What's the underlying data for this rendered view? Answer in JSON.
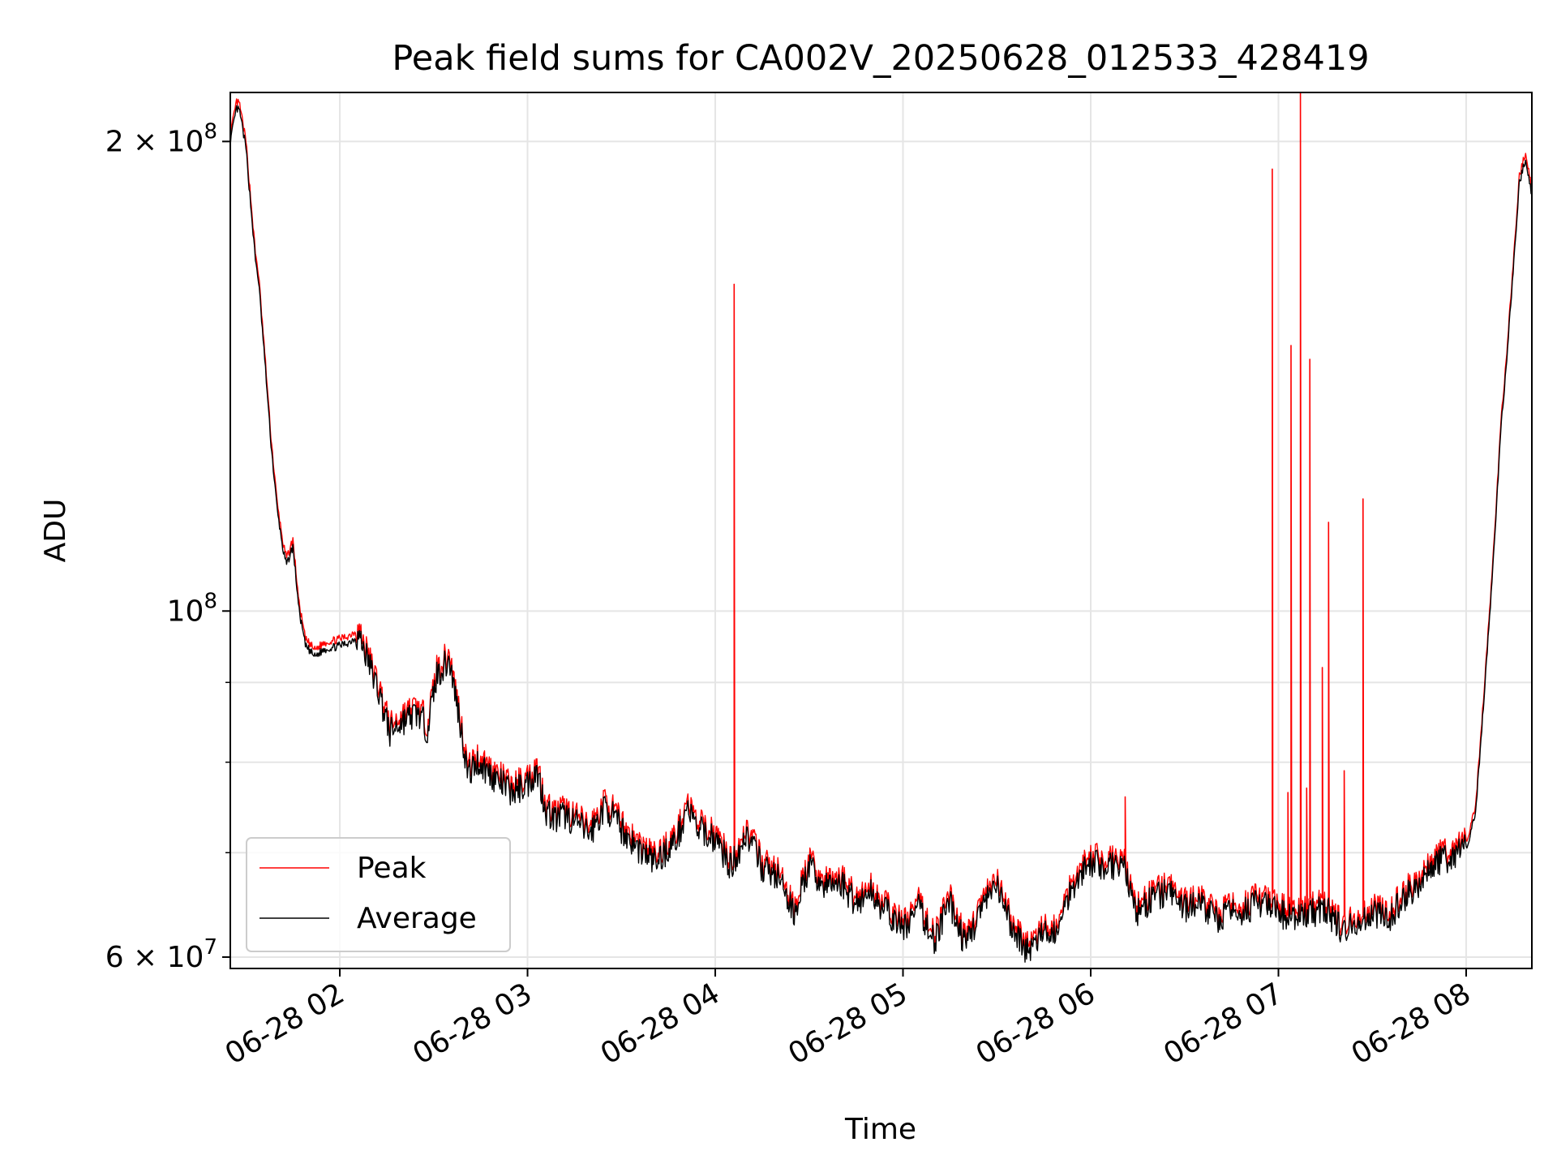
{
  "chart_data": {
    "type": "line",
    "title": "Peak field sums for CA002V_20250628_012533_428419",
    "xlabel": "Time",
    "ylabel": "ADU",
    "y_scale": "log",
    "ylim": [
      59000000,
      215000000
    ],
    "xlim": [
      "2025-06-28 01:25",
      "2025-06-28 08:21"
    ],
    "grid": true,
    "legend_position": "lower-left",
    "x_ticks": [
      {
        "t": "2025-06-28 02:00",
        "label": "06-28 02"
      },
      {
        "t": "2025-06-28 03:00",
        "label": "06-28 03"
      },
      {
        "t": "2025-06-28 04:00",
        "label": "06-28 04"
      },
      {
        "t": "2025-06-28 05:00",
        "label": "06-28 05"
      },
      {
        "t": "2025-06-28 06:00",
        "label": "06-28 06"
      },
      {
        "t": "2025-06-28 07:00",
        "label": "06-28 07"
      },
      {
        "t": "2025-06-28 08:00",
        "label": "06-28 08"
      }
    ],
    "y_major_ticks": [
      {
        "value": 60000000,
        "mant": "6",
        "exp": "7"
      },
      {
        "value": 100000000,
        "mant": "",
        "exp": "8"
      },
      {
        "value": 200000000,
        "mant": "2",
        "exp": "8"
      }
    ],
    "y_minor_ticks": [
      70000000,
      80000000,
      90000000
    ],
    "series": [
      {
        "name": "Average",
        "color": "#000000",
        "points": [
          [
            "2025-06-28 01:25",
            200000000
          ],
          [
            "2025-06-28 01:27",
            210000000
          ],
          [
            "2025-06-28 01:28",
            209000000
          ],
          [
            "2025-06-28 01:30",
            198000000
          ],
          [
            "2025-06-28 01:33",
            168000000
          ],
          [
            "2025-06-28 01:34",
            163000000
          ],
          [
            "2025-06-28 01:36",
            145000000
          ],
          [
            "2025-06-28 01:38",
            128000000
          ],
          [
            "2025-06-28 01:40",
            116000000
          ],
          [
            "2025-06-28 01:42",
            109000000
          ],
          [
            "2025-06-28 01:43",
            107000000
          ],
          [
            "2025-06-28 01:45",
            110000000
          ],
          [
            "2025-06-28 01:47",
            100000000
          ],
          [
            "2025-06-28 01:49",
            95000000
          ],
          [
            "2025-06-28 01:52",
            93500000
          ],
          [
            "2025-06-28 01:55",
            94500000
          ],
          [
            "2025-06-28 02:00",
            95000000
          ],
          [
            "2025-06-28 02:03",
            95500000
          ],
          [
            "2025-06-28 02:06",
            96500000
          ],
          [
            "2025-06-28 02:09",
            93000000
          ],
          [
            "2025-06-28 02:13",
            88000000
          ],
          [
            "2025-06-28 02:16",
            83500000
          ],
          [
            "2025-06-28 02:20",
            85000000
          ],
          [
            "2025-06-28 02:25",
            86000000
          ],
          [
            "2025-06-28 02:28",
            84000000
          ],
          [
            "2025-06-28 02:31",
            91000000
          ],
          [
            "2025-06-28 02:35",
            93000000
          ],
          [
            "2025-06-28 02:38",
            86000000
          ],
          [
            "2025-06-28 02:41",
            78500000
          ],
          [
            "2025-06-28 02:44",
            80000000
          ],
          [
            "2025-06-28 02:47",
            79000000
          ],
          [
            "2025-06-28 02:50",
            78000000
          ],
          [
            "2025-06-28 02:55",
            76500000
          ],
          [
            "2025-06-28 03:00",
            77500000
          ],
          [
            "2025-06-28 03:03",
            79000000
          ],
          [
            "2025-06-28 03:06",
            74500000
          ],
          [
            "2025-06-28 03:09",
            73500000
          ],
          [
            "2025-06-28 03:12",
            74000000
          ],
          [
            "2025-06-28 03:16",
            73000000
          ],
          [
            "2025-06-28 03:20",
            72000000
          ],
          [
            "2025-06-28 03:25",
            75000000
          ],
          [
            "2025-06-28 03:30",
            72500000
          ],
          [
            "2025-06-28 03:35",
            70500000
          ],
          [
            "2025-06-28 03:41",
            69000000
          ],
          [
            "2025-06-28 03:48",
            71500000
          ],
          [
            "2025-06-28 03:51",
            75000000
          ],
          [
            "2025-06-28 03:54",
            72500000
          ],
          [
            "2025-06-28 04:00",
            71500000
          ],
          [
            "2025-06-28 04:05",
            68500000
          ],
          [
            "2025-06-28 04:10",
            72000000
          ],
          [
            "2025-06-28 04:15",
            68500000
          ],
          [
            "2025-06-28 04:20",
            67500000
          ],
          [
            "2025-06-28 04:25",
            64000000
          ],
          [
            "2025-06-28 04:30",
            68500000
          ],
          [
            "2025-06-28 04:35",
            66500000
          ],
          [
            "2025-06-28 04:40",
            67000000
          ],
          [
            "2025-06-28 04:45",
            65000000
          ],
          [
            "2025-06-28 04:50",
            66000000
          ],
          [
            "2025-06-28 04:55",
            64000000
          ],
          [
            "2025-06-28 05:00",
            62500000
          ],
          [
            "2025-06-28 05:05",
            64500000
          ],
          [
            "2025-06-28 05:10",
            61500000
          ],
          [
            "2025-06-28 05:15",
            65000000
          ],
          [
            "2025-06-28 05:20",
            61000000
          ],
          [
            "2025-06-28 05:25",
            64500000
          ],
          [
            "2025-06-28 05:30",
            66500000
          ],
          [
            "2025-06-28 05:35",
            62500000
          ],
          [
            "2025-06-28 05:40",
            60500000
          ],
          [
            "2025-06-28 05:45",
            62000000
          ],
          [
            "2025-06-28 05:50",
            62500000
          ],
          [
            "2025-06-28 05:53",
            66000000
          ],
          [
            "2025-06-28 05:57",
            68000000
          ],
          [
            "2025-06-28 06:00",
            69000000
          ],
          [
            "2025-06-28 06:05",
            68500000
          ],
          [
            "2025-06-28 06:10",
            69000000
          ],
          [
            "2025-06-28 06:15",
            64000000
          ],
          [
            "2025-06-28 06:20",
            65500000
          ],
          [
            "2025-06-28 06:25",
            66000000
          ],
          [
            "2025-06-28 06:30",
            64500000
          ],
          [
            "2025-06-28 06:35",
            65000000
          ],
          [
            "2025-06-28 06:40",
            63500000
          ],
          [
            "2025-06-28 06:45",
            64000000
          ],
          [
            "2025-06-28 06:50",
            64500000
          ],
          [
            "2025-06-28 06:55",
            65000000
          ],
          [
            "2025-06-28 07:00",
            64000000
          ],
          [
            "2025-06-28 07:05",
            63500000
          ],
          [
            "2025-06-28 07:10",
            64000000
          ],
          [
            "2025-06-28 07:15",
            64500000
          ],
          [
            "2025-06-28 07:20",
            62500000
          ],
          [
            "2025-06-28 07:25",
            63000000
          ],
          [
            "2025-06-28 07:30",
            64000000
          ],
          [
            "2025-06-28 07:35",
            63500000
          ],
          [
            "2025-06-28 07:40",
            65500000
          ],
          [
            "2025-06-28 07:45",
            67000000
          ],
          [
            "2025-06-28 07:50",
            69000000
          ],
          [
            "2025-06-28 07:55",
            69500000
          ],
          [
            "2025-06-28 08:00",
            70500000
          ],
          [
            "2025-06-28 08:03",
            74000000
          ],
          [
            "2025-06-28 08:05",
            84000000
          ],
          [
            "2025-06-28 08:07",
            96000000
          ],
          [
            "2025-06-28 08:09",
            110000000
          ],
          [
            "2025-06-28 08:11",
            130000000
          ],
          [
            "2025-06-28 08:13",
            145000000
          ],
          [
            "2025-06-28 08:15",
            165000000
          ],
          [
            "2025-06-28 08:17",
            188000000
          ],
          [
            "2025-06-28 08:19",
            195000000
          ],
          [
            "2025-06-28 08:21",
            185000000
          ]
        ]
      },
      {
        "name": "Peak",
        "color": "#ff0000",
        "ratio_over_average": 1.01,
        "spikes": [
          [
            "2025-06-28 04:06",
            162000000
          ],
          [
            "2025-06-28 06:11",
            76000000
          ],
          [
            "2025-06-28 06:58",
            192000000
          ],
          [
            "2025-06-28 07:03",
            76500000
          ],
          [
            "2025-06-28 07:04",
            148000000
          ],
          [
            "2025-06-28 07:07",
            215000000
          ],
          [
            "2025-06-28 07:09",
            77000000
          ],
          [
            "2025-06-28 07:10",
            145000000
          ],
          [
            "2025-06-28 07:14",
            92000000
          ],
          [
            "2025-06-28 07:16",
            114000000
          ],
          [
            "2025-06-28 07:21",
            79000000
          ],
          [
            "2025-06-28 07:27",
            118000000
          ]
        ]
      }
    ]
  }
}
